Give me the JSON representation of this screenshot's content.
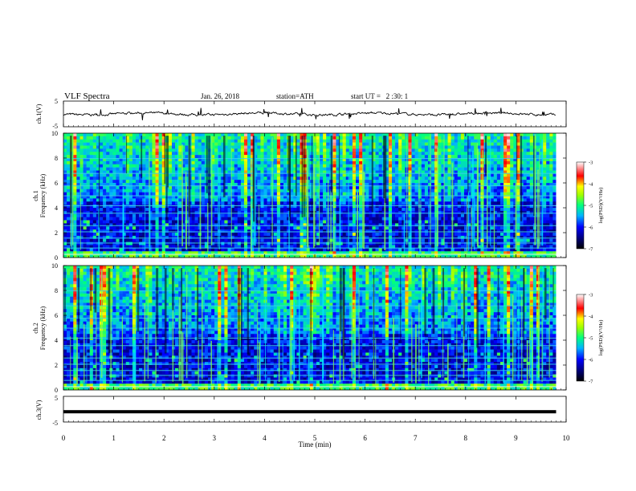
{
  "header": {
    "title": "VLF Spectra",
    "date": "Jan. 26, 2018",
    "station": "station=ATH",
    "start_ut": "start UT =   2 :30: 1"
  },
  "chart_data": [
    {
      "type": "line",
      "panel": "ch1-waveform",
      "ylabel": "ch.1(V)",
      "ylim": [
        -5,
        5
      ],
      "yticks": [
        5,
        -5
      ],
      "baseline": 0,
      "xlim": [
        0,
        10
      ],
      "data_extent_min": 9.8,
      "color": "#000000"
    },
    {
      "type": "heatmap",
      "panel": "ch1-spectrogram",
      "ylabel": "Frequency (kHz)",
      "ylabel2": "ch.1",
      "ylim": [
        0,
        10
      ],
      "yticks": [
        0,
        2,
        4,
        6,
        8,
        10
      ],
      "xlim": [
        0,
        10
      ],
      "data_extent_min": 9.8,
      "colorbar": {
        "label": "log(PSD)(V²/Hz)",
        "range": [
          -7,
          -3
        ],
        "ticks": [
          -3,
          -4,
          -5,
          -6,
          -7
        ]
      }
    },
    {
      "type": "heatmap",
      "panel": "ch2-spectrogram",
      "ylabel": "Frequency (kHz)",
      "ylabel2": "ch.2",
      "ylim": [
        0,
        10
      ],
      "yticks": [
        0,
        2,
        4,
        6,
        8,
        10
      ],
      "xlim": [
        0,
        10
      ],
      "data_extent_min": 9.8,
      "colorbar": {
        "label": "log(PSD)(V²/Hz)",
        "range": [
          -7,
          -3
        ],
        "ticks": [
          -3,
          -4,
          -5,
          -6,
          -7
        ]
      }
    },
    {
      "type": "line",
      "panel": "ch3-waveform",
      "ylabel": "ch.3(V)",
      "ylim": [
        -5,
        5
      ],
      "yticks": [
        5,
        -5
      ],
      "baseline": -1,
      "xlim": [
        0,
        10
      ],
      "data_extent_min": 9.8,
      "color": "#000000"
    }
  ],
  "xaxis": {
    "label": "Time (min)",
    "ticks": [
      "0",
      "1",
      "2",
      "3",
      "4",
      "5",
      "6",
      "7",
      "8",
      "9",
      "10"
    ]
  }
}
